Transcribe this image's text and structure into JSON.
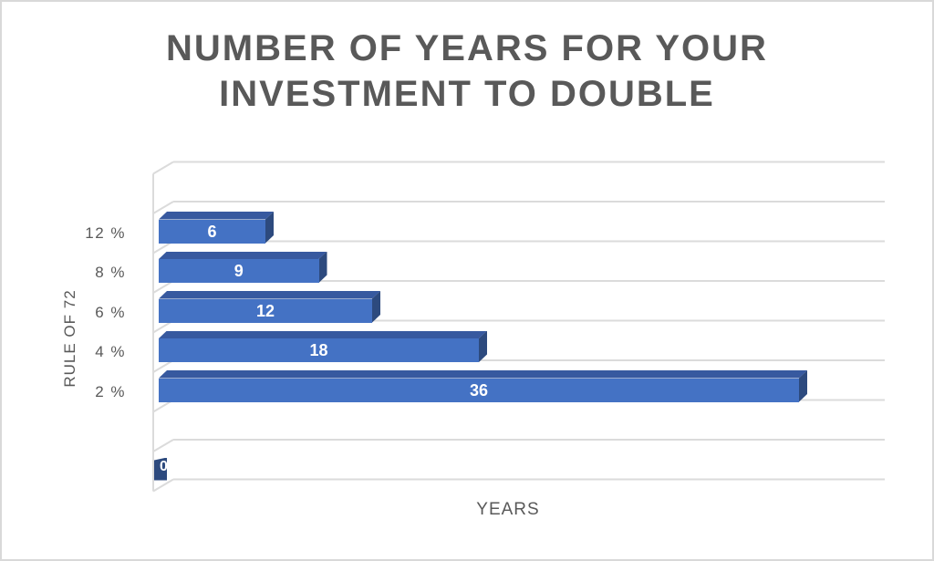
{
  "frame": {
    "background": "#FFFFFF",
    "border_color": "#D9D9D9"
  },
  "chart_data": {
    "type": "bar",
    "orientation": "horizontal",
    "effect": "3d",
    "title": "NUMBER OF YEARS FOR YOUR INVESTMENT TO DOUBLE",
    "title_lines": [
      "NUMBER OF YEARS FOR YOUR",
      "INVESTMENT TO DOUBLE"
    ],
    "xlabel": "YEARS",
    "ylabel": "RULE OF 72",
    "categories": [
      "12 %",
      "8 %",
      "6 %",
      "4 %",
      "2 %"
    ],
    "values": [
      6,
      9,
      12,
      18,
      36
    ],
    "row_slots": [
      {
        "label": "",
        "value": null
      },
      {
        "label": "12 %",
        "value": 6
      },
      {
        "label": "8 %",
        "value": 9
      },
      {
        "label": "6 %",
        "value": 12
      },
      {
        "label": "4 %",
        "value": 18
      },
      {
        "label": "2 %",
        "value": 36
      },
      {
        "label": "",
        "value": null
      },
      {
        "label": "",
        "value": 0
      }
    ],
    "data_labels_shown": true,
    "xlim": [
      0,
      40
    ],
    "grid": true,
    "legend": false,
    "colors": {
      "bar_front": "#4472C4",
      "bar_top": "#37599F",
      "bar_side": "#2D4A7E",
      "gridline": "#DBDBDB",
      "text": "#595959",
      "data_label": "#FFFFFF"
    }
  }
}
